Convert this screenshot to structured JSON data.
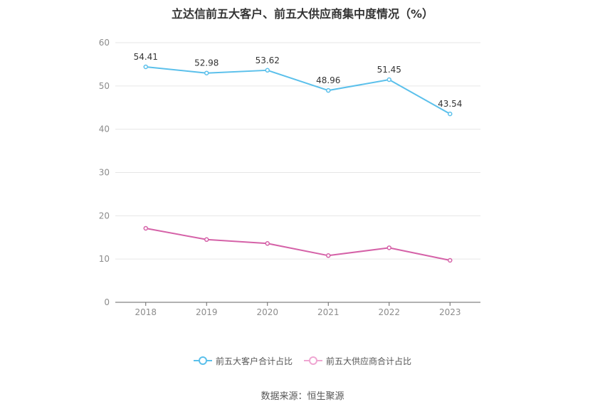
{
  "chart_data": {
    "type": "line",
    "title": "立达信前五大客户、前五大供应商集中度情况（%）",
    "categories": [
      "2018",
      "2019",
      "2020",
      "2021",
      "2022",
      "2023"
    ],
    "series": [
      {
        "name": "前五大客户合计占比",
        "color": "#5bc0eb",
        "values": [
          54.41,
          52.98,
          53.62,
          48.96,
          51.45,
          43.54
        ],
        "show_labels": true
      },
      {
        "name": "前五大供应商合计占比",
        "color": "#d562a8",
        "values": [
          17.1,
          14.5,
          13.6,
          10.8,
          12.6,
          9.7
        ],
        "show_labels": false
      }
    ],
    "ylim": [
      0,
      60
    ],
    "yticks": [
      0,
      10,
      20,
      30,
      40,
      50,
      60
    ],
    "grid": true,
    "legend_position": "bottom-center",
    "xlabel": "",
    "ylabel": ""
  },
  "footer": {
    "source": "数据来源：恒生聚源"
  }
}
